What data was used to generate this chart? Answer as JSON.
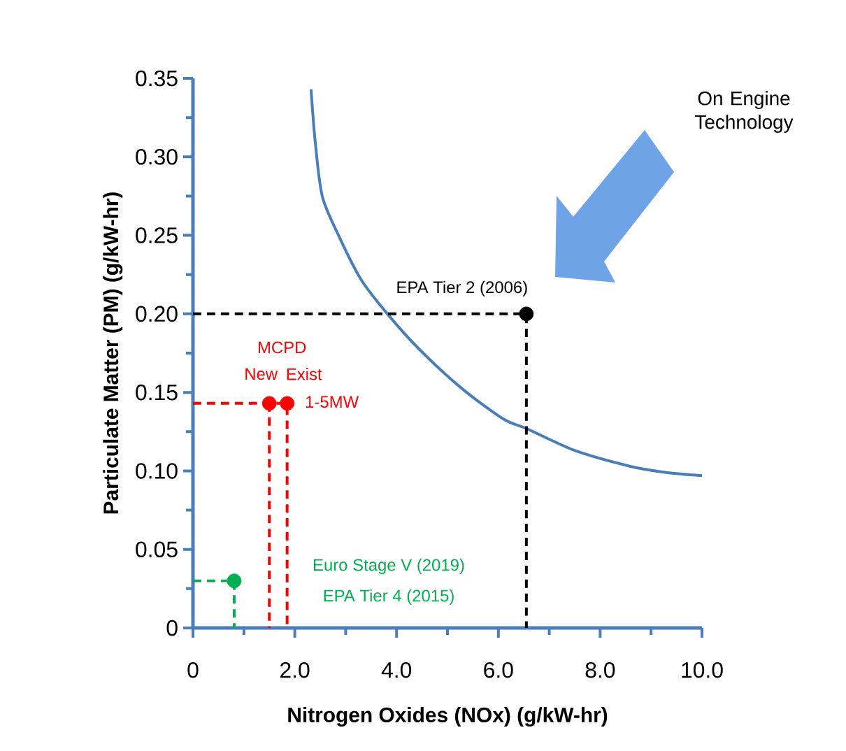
{
  "chart_data": {
    "type": "line",
    "xlabel": "Nitrogen Oxides (NOx) (g/kW-hr)",
    "ylabel": "Particulate Matter (PM) (g/kW-hr)",
    "xlim": [
      0,
      10
    ],
    "ylim": [
      0,
      0.35
    ],
    "xticks": [
      0,
      {
        "value": 2,
        "label": "2.0"
      },
      {
        "value": 4,
        "label": "4.0"
      },
      {
        "value": 6,
        "label": "6.0"
      },
      {
        "value": 8,
        "label": "8.0"
      },
      {
        "value": 10,
        "label": "10.0"
      }
    ],
    "yticks": [
      0,
      0.05,
      {
        "value": 0.1,
        "label": "0.10"
      },
      0.15,
      {
        "value": 0.2,
        "label": "0.20"
      },
      0.25,
      {
        "value": 0.3,
        "label": "0.30"
      },
      0.35
    ],
    "series": [
      {
        "color": "#4a7ebb",
        "line_style": "solid",
        "x": [
          2.32,
          2.4,
          2.54,
          2.86,
          3.3,
          3.82,
          4.46,
          5.3,
          6.1,
          6.55,
          7.5,
          8.58,
          9.3,
          10.0
        ],
        "values": [
          0.343,
          0.31,
          0.275,
          0.25,
          0.222,
          0.2,
          0.177,
          0.152,
          0.133,
          0.127,
          0.113,
          0.103,
          0.099,
          0.097
        ]
      },
      {
        "color": "#000000",
        "line_style": "dashed",
        "x": [
          0,
          6.55,
          6.55
        ],
        "values": [
          0.2,
          0.2,
          0
        ]
      },
      {
        "color": "#ff0000",
        "line_style": "dashed",
        "x": [
          0,
          1.85,
          1.85
        ],
        "values": [
          0.143,
          0.143,
          0
        ]
      },
      {
        "color": "#ff0000",
        "line_style": "dashed",
        "x": [
          1.5,
          1.5
        ],
        "values": [
          0.143,
          0
        ]
      },
      {
        "color": "#00b050",
        "line_style": "dashed",
        "x": [
          0,
          0.81,
          0.81
        ],
        "values": [
          0.03,
          0.03,
          0
        ]
      },
      {
        "type": "scatter",
        "color": "#000000",
        "marker": "circle",
        "x": [
          6.55
        ],
        "values": [
          0.2
        ]
      },
      {
        "type": "scatter",
        "color": "#ff0000",
        "marker": "circle",
        "x": [
          1.5,
          1.85
        ],
        "values": [
          0.143,
          0.143
        ]
      },
      {
        "type": "scatter",
        "color": "#00b050",
        "marker": "circle",
        "x": [
          0.81
        ],
        "values": [
          0.03
        ]
      }
    ],
    "annotations": [
      "On Engine Technology",
      {
        "text": "EPA Tier 2 (2006)",
        "x": 6.55,
        "y": 0.2
      },
      {
        "text": "MCPD",
        "x": 1.5,
        "y": 0.143
      },
      {
        "text": "New",
        "x": 1.5,
        "y": 0.143
      },
      {
        "text": "Exist",
        "x": 1.85,
        "y": 0.143
      },
      {
        "text": "1-5MW",
        "x": 1.85,
        "y": 0.143
      },
      "Euro Stage V (2019)",
      "EPA Tier 4 (2015)"
    ]
  }
}
